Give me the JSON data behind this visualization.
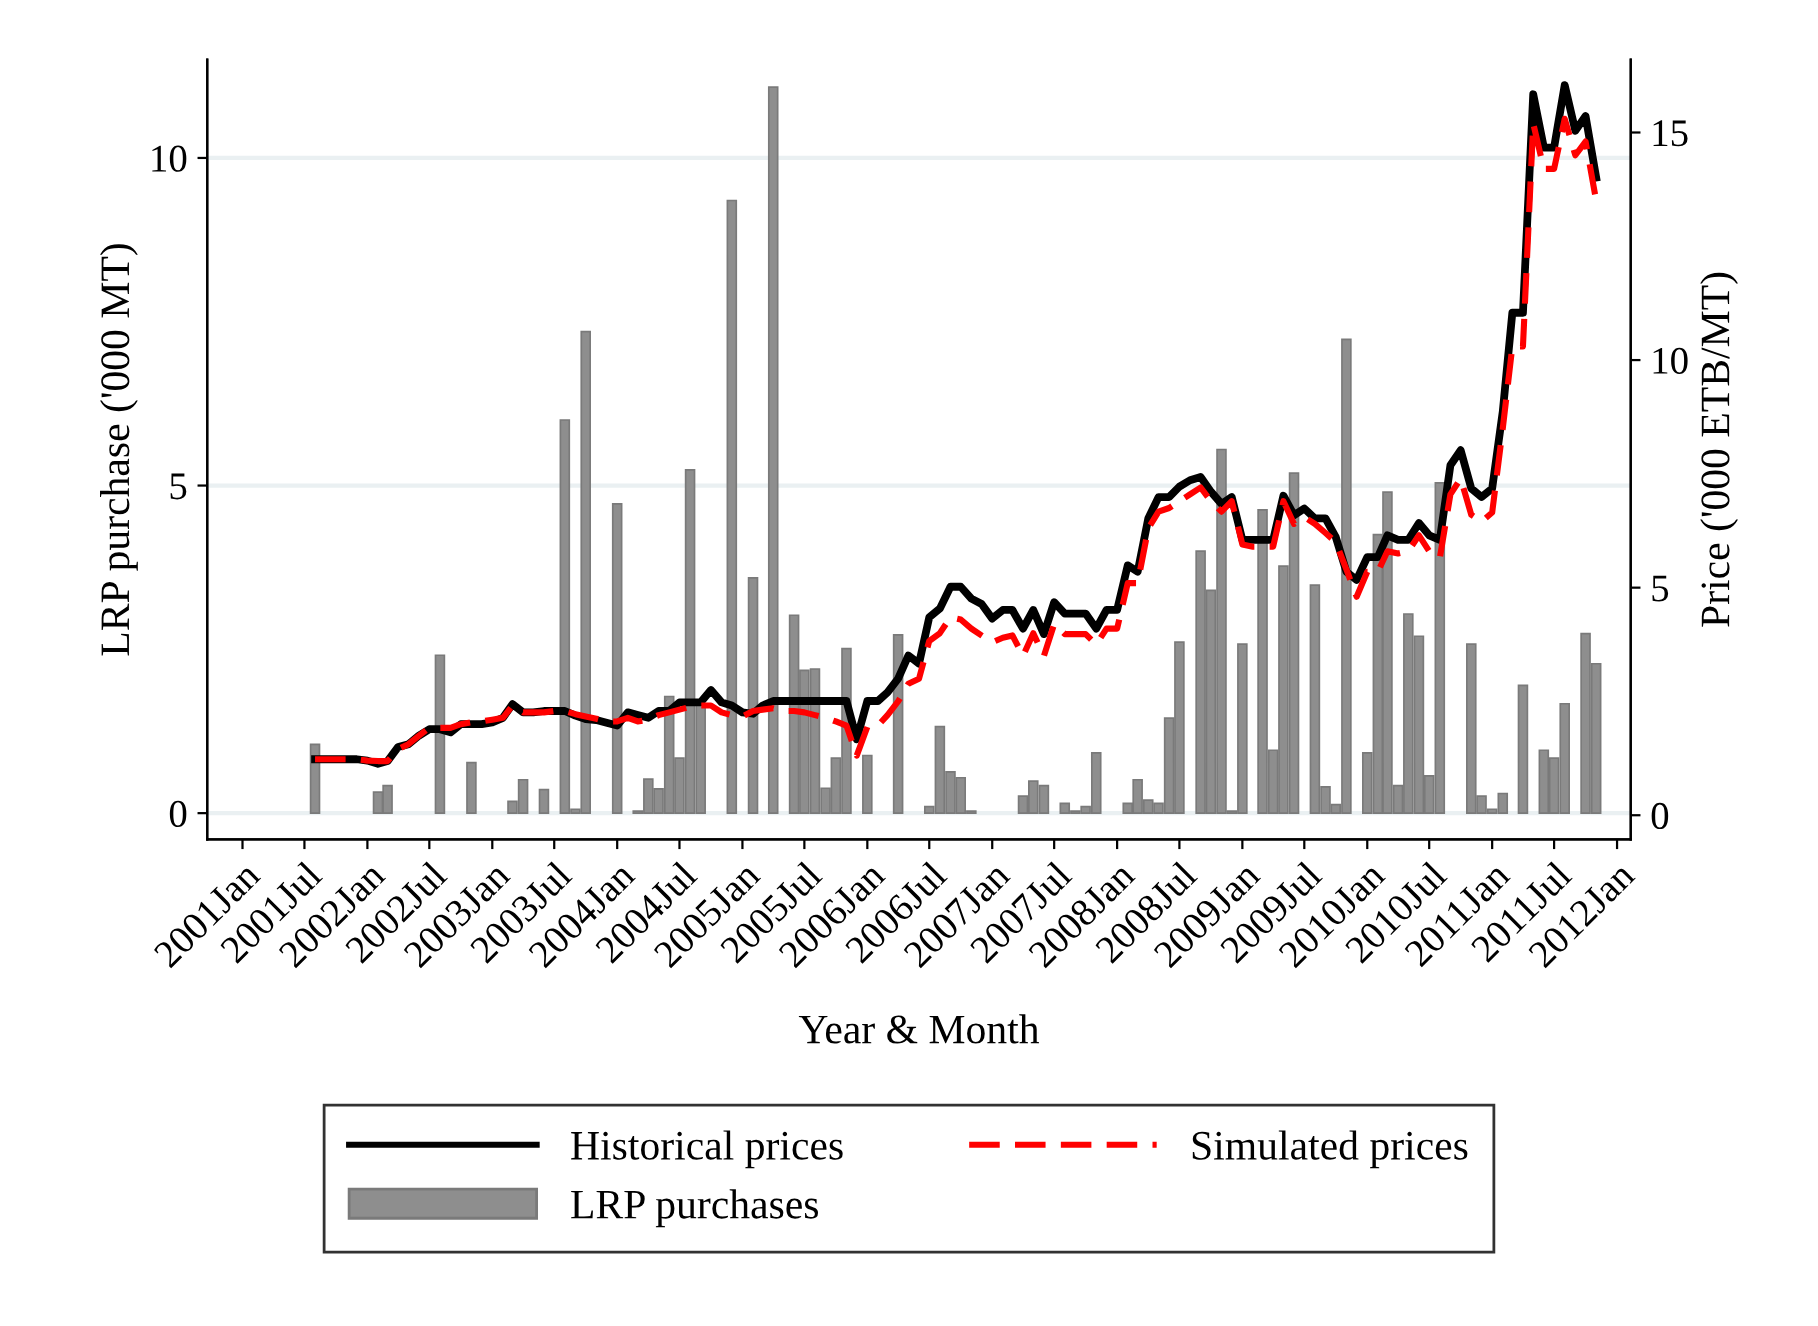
{
  "chart_data": {
    "type": "bar",
    "xlabel": "Year & Month",
    "ylabel": "LRP purchase ('000 MT)",
    "y2label": "Price ('000 ETB/MT)",
    "legend": "bottom",
    "grid": "y",
    "xlim": [
      "2000-09-20",
      "2012-02-10"
    ],
    "ylim": [
      -0.4,
      11.5
    ],
    "y2lim": [
      -0.53,
      16.6
    ],
    "yticks": [
      0,
      5,
      10
    ],
    "y2ticks": [
      0,
      5,
      10,
      15
    ],
    "xticks": [
      {
        "value": "2001-01",
        "label": "2001Jan"
      },
      {
        "value": "2001-07",
        "label": "2001Jul"
      },
      {
        "value": "2002-01",
        "label": "2002Jan"
      },
      {
        "value": "2002-07",
        "label": "2002Jul"
      },
      {
        "value": "2003-01",
        "label": "2003Jan"
      },
      {
        "value": "2003-07",
        "label": "2003Jul"
      },
      {
        "value": "2004-01",
        "label": "2004Jan"
      },
      {
        "value": "2004-07",
        "label": "2004Jul"
      },
      {
        "value": "2005-01",
        "label": "2005Jan"
      },
      {
        "value": "2005-07",
        "label": "2005Jul"
      },
      {
        "value": "2006-01",
        "label": "2006Jan"
      },
      {
        "value": "2006-07",
        "label": "2006Jul"
      },
      {
        "value": "2007-01",
        "label": "2007Jan"
      },
      {
        "value": "2007-07",
        "label": "2007Jul"
      },
      {
        "value": "2008-01",
        "label": "2008Jan"
      },
      {
        "value": "2008-07",
        "label": "2008Jul"
      },
      {
        "value": "2009-01",
        "label": "2009Jan"
      },
      {
        "value": "2009-07",
        "label": "2009Jul"
      },
      {
        "value": "2010-01",
        "label": "2010Jan"
      },
      {
        "value": "2010-07",
        "label": "2010Jul"
      },
      {
        "value": "2011-01",
        "label": "2011Jan"
      },
      {
        "value": "2011-07",
        "label": "2011Jul"
      },
      {
        "value": "2012-01",
        "label": "2012Jan"
      }
    ],
    "series": [
      {
        "name": "Historical prices",
        "type": "line",
        "axis": "y2",
        "color": "#000000",
        "line_style": "solid",
        "x": [
          "2001-08",
          "2001-09",
          "2001-10",
          "2001-11",
          "2001-12",
          "2002-01",
          "2002-02",
          "2002-03",
          "2002-04",
          "2002-05",
          "2002-06",
          "2002-07",
          "2002-08",
          "2002-09",
          "2002-10",
          "2002-11",
          "2002-12",
          "2003-01",
          "2003-02",
          "2003-03",
          "2003-04",
          "2003-05",
          "2003-06",
          "2003-07",
          "2003-08",
          "2003-09",
          "2003-10",
          "2003-11",
          "2003-12",
          "2004-01",
          "2004-02",
          "2004-03",
          "2004-04",
          "2004-05",
          "2004-06",
          "2004-07",
          "2004-08",
          "2004-09",
          "2004-10",
          "2004-11",
          "2004-12",
          "2005-01",
          "2005-02",
          "2005-03",
          "2005-04",
          "2005-05",
          "2005-06",
          "2005-07",
          "2005-08",
          "2005-09",
          "2005-10",
          "2005-11",
          "2005-12",
          "2006-01",
          "2006-02",
          "2006-03",
          "2006-04",
          "2006-05",
          "2006-06",
          "2006-07",
          "2006-08",
          "2006-09",
          "2006-10",
          "2006-11",
          "2006-12",
          "2007-01",
          "2007-02",
          "2007-03",
          "2007-04",
          "2007-05",
          "2007-06",
          "2007-07",
          "2007-08",
          "2007-09",
          "2007-10",
          "2007-11",
          "2007-12",
          "2008-01",
          "2008-02",
          "2008-03",
          "2008-04",
          "2008-05",
          "2008-06",
          "2008-07",
          "2008-08",
          "2008-09",
          "2008-10",
          "2008-11",
          "2008-12",
          "2009-01",
          "2009-02",
          "2009-03",
          "2009-04",
          "2009-05",
          "2009-06",
          "2009-07",
          "2009-08",
          "2009-09",
          "2009-10",
          "2009-11",
          "2009-12",
          "2010-01",
          "2010-02",
          "2010-03",
          "2010-04",
          "2010-05",
          "2010-06",
          "2010-07",
          "2010-08",
          "2010-09",
          "2010-10",
          "2010-11",
          "2010-12",
          "2011-01",
          "2011-02",
          "2011-03",
          "2011-04",
          "2011-05",
          "2011-06",
          "2011-07",
          "2011-08",
          "2011-09",
          "2011-10",
          "2011-11"
        ],
        "values": [
          1.23,
          1.23,
          1.23,
          1.23,
          1.23,
          1.2,
          1.13,
          1.19,
          1.5,
          1.56,
          1.75,
          1.89,
          1.89,
          1.82,
          2.0,
          2.0,
          2.0,
          2.04,
          2.14,
          2.44,
          2.26,
          2.26,
          2.29,
          2.29,
          2.29,
          2.19,
          2.11,
          2.09,
          2.03,
          1.97,
          2.26,
          2.2,
          2.14,
          2.29,
          2.29,
          2.48,
          2.48,
          2.48,
          2.75,
          2.48,
          2.41,
          2.26,
          2.23,
          2.41,
          2.51,
          2.51,
          2.51,
          2.51,
          2.51,
          2.51,
          2.51,
          2.51,
          1.67,
          2.51,
          2.51,
          2.7,
          3.0,
          3.51,
          3.33,
          4.35,
          4.54,
          5.02,
          5.02,
          4.76,
          4.64,
          4.32,
          4.51,
          4.51,
          4.1,
          4.51,
          3.98,
          4.68,
          4.43,
          4.43,
          4.43,
          4.1,
          4.51,
          4.51,
          5.49,
          5.35,
          6.52,
          6.99,
          6.99,
          7.22,
          7.36,
          7.43,
          7.11,
          6.84,
          6.99,
          6.05,
          6.05,
          6.05,
          6.05,
          7.02,
          6.59,
          6.74,
          6.52,
          6.52,
          6.11,
          5.35,
          5.17,
          5.67,
          5.67,
          6.15,
          6.05,
          6.05,
          6.42,
          6.15,
          6.05,
          7.69,
          8.02,
          7.18,
          6.99,
          7.18,
          8.87,
          11.04,
          11.04,
          15.84,
          14.67,
          14.67,
          16.04,
          15.04,
          15.36,
          14.01
        ]
      },
      {
        "name": "Simulated prices",
        "type": "line",
        "axis": "y2",
        "color": "#ff0000",
        "line_style": "dashed",
        "x": [
          "2001-08",
          "2001-09",
          "2001-10",
          "2001-11",
          "2001-12",
          "2002-01",
          "2002-02",
          "2002-03",
          "2002-04",
          "2002-05",
          "2002-06",
          "2002-07",
          "2002-08",
          "2002-09",
          "2002-10",
          "2002-11",
          "2002-12",
          "2003-01",
          "2003-02",
          "2003-03",
          "2003-04",
          "2003-05",
          "2003-06",
          "2003-07",
          "2003-08",
          "2003-09",
          "2003-10",
          "2003-11",
          "2003-12",
          "2004-01",
          "2004-02",
          "2004-03",
          "2004-04",
          "2004-05",
          "2004-06",
          "2004-07",
          "2004-08",
          "2004-09",
          "2004-10",
          "2004-11",
          "2004-12",
          "2005-01",
          "2005-02",
          "2005-03",
          "2005-04",
          "2005-05",
          "2005-06",
          "2005-07",
          "2005-08",
          "2005-09",
          "2005-10",
          "2005-11",
          "2005-12",
          "2006-01",
          "2006-02",
          "2006-03",
          "2006-04",
          "2006-05",
          "2006-06",
          "2006-07",
          "2006-08",
          "2006-09",
          "2006-10",
          "2006-11",
          "2006-12",
          "2007-01",
          "2007-02",
          "2007-03",
          "2007-04",
          "2007-05",
          "2007-06",
          "2007-07",
          "2007-08",
          "2007-09",
          "2007-10",
          "2007-11",
          "2007-12",
          "2008-01",
          "2008-02",
          "2008-03",
          "2008-04",
          "2008-05",
          "2008-06",
          "2008-07",
          "2008-08",
          "2008-09",
          "2008-10",
          "2008-11",
          "2008-12",
          "2009-01",
          "2009-02",
          "2009-03",
          "2009-04",
          "2009-05",
          "2009-06",
          "2009-07",
          "2009-08",
          "2009-09",
          "2009-10",
          "2009-11",
          "2009-12",
          "2010-01",
          "2010-02",
          "2010-03",
          "2010-04",
          "2010-05",
          "2010-06",
          "2010-07",
          "2010-08",
          "2010-09",
          "2010-10",
          "2010-11",
          "2010-12",
          "2011-01",
          "2011-02",
          "2011-03",
          "2011-04",
          "2011-05",
          "2011-06",
          "2011-07",
          "2011-08",
          "2011-09",
          "2011-10",
          "2011-11"
        ],
        "values": [
          1.23,
          1.23,
          1.23,
          1.23,
          1.23,
          1.2,
          1.19,
          1.19,
          1.45,
          1.56,
          1.75,
          1.92,
          1.92,
          1.92,
          2.0,
          2.04,
          2.06,
          2.1,
          2.14,
          2.41,
          2.26,
          2.26,
          2.26,
          2.29,
          2.29,
          2.22,
          2.17,
          2.12,
          2.06,
          2.06,
          2.14,
          2.06,
          2.1,
          2.2,
          2.26,
          2.32,
          2.38,
          2.41,
          2.41,
          2.26,
          2.2,
          2.17,
          2.29,
          2.32,
          2.35,
          2.29,
          2.29,
          2.26,
          2.2,
          2.14,
          2.06,
          1.97,
          1.31,
          1.94,
          1.97,
          2.2,
          2.5,
          2.89,
          3.0,
          3.83,
          4.0,
          4.35,
          4.3,
          4.1,
          3.95,
          3.8,
          3.9,
          3.95,
          3.5,
          4.0,
          3.5,
          4.2,
          3.98,
          3.98,
          3.98,
          3.75,
          4.1,
          4.1,
          5.1,
          5.1,
          6.3,
          6.67,
          6.75,
          6.9,
          7.05,
          7.2,
          6.9,
          6.67,
          6.9,
          5.95,
          5.9,
          5.9,
          5.9,
          6.9,
          6.4,
          6.55,
          6.4,
          6.2,
          6.0,
          5.4,
          4.8,
          5.35,
          5.35,
          5.8,
          5.75,
          5.8,
          6.15,
          5.8,
          5.65,
          7.05,
          7.4,
          6.6,
          6.45,
          6.65,
          8.5,
          10.3,
          10.3,
          15.2,
          14.2,
          14.2,
          15.3,
          14.5,
          14.8,
          13.5
        ]
      },
      {
        "name": "LRP purchases",
        "axis": "y",
        "color": "#8e8e8e",
        "x": [
          "2001-08",
          "2002-02",
          "2002-03",
          "2002-08",
          "2002-11",
          "2003-03",
          "2003-04",
          "2003-06",
          "2003-08",
          "2003-09",
          "2003-10",
          "2004-01",
          "2004-03",
          "2004-04",
          "2004-05",
          "2004-06",
          "2004-07",
          "2004-08",
          "2004-09",
          "2004-12",
          "2005-02",
          "2005-04",
          "2005-06",
          "2005-07",
          "2005-08",
          "2005-09",
          "2005-10",
          "2005-11",
          "2006-01",
          "2006-04",
          "2006-07",
          "2006-08",
          "2006-09",
          "2006-10",
          "2006-11",
          "2007-04",
          "2007-05",
          "2007-06",
          "2007-08",
          "2007-09",
          "2007-10",
          "2007-11",
          "2008-02",
          "2008-03",
          "2008-04",
          "2008-05",
          "2008-06",
          "2008-07",
          "2008-09",
          "2008-10",
          "2008-11",
          "2008-12",
          "2009-01",
          "2009-03",
          "2009-04",
          "2009-05",
          "2009-06",
          "2009-08",
          "2009-09",
          "2009-10",
          "2009-11",
          "2010-01",
          "2010-02",
          "2010-03",
          "2010-04",
          "2010-05",
          "2010-06",
          "2010-07",
          "2010-08",
          "2010-11",
          "2010-12",
          "2011-01",
          "2011-02",
          "2011-04",
          "2011-06",
          "2011-07",
          "2011-08",
          "2011-10",
          "2011-11"
        ],
        "values": [
          1.05,
          0.32,
          0.42,
          2.41,
          0.77,
          0.18,
          0.51,
          0.36,
          6.0,
          0.06,
          7.35,
          4.72,
          0.03,
          0.52,
          0.37,
          1.78,
          0.84,
          5.24,
          1.66,
          9.35,
          3.59,
          11.08,
          3.02,
          2.18,
          2.2,
          0.38,
          0.84,
          2.51,
          0.88,
          2.72,
          0.1,
          1.32,
          0.63,
          0.54,
          0.03,
          0.26,
          0.49,
          0.42,
          0.15,
          0.03,
          0.1,
          0.92,
          0.15,
          0.51,
          0.2,
          0.15,
          1.45,
          2.61,
          4.0,
          3.4,
          5.55,
          0.03,
          2.58,
          4.63,
          0.96,
          3.77,
          5.19,
          3.48,
          0.4,
          0.13,
          7.23,
          0.92,
          4.25,
          4.9,
          0.42,
          3.04,
          2.7,
          0.57,
          5.04,
          2.58,
          0.26,
          0.06,
          0.3,
          1.95,
          0.96,
          0.84,
          1.67,
          2.74,
          2.28
        ]
      }
    ]
  }
}
